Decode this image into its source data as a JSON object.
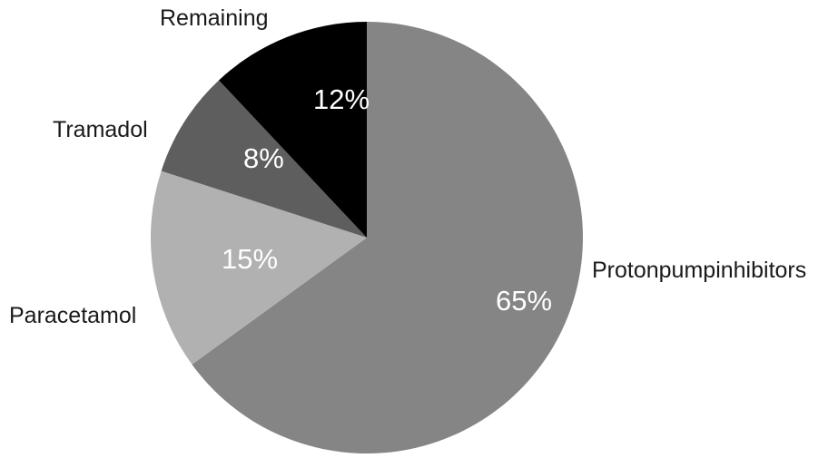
{
  "chart_data": {
    "type": "pie",
    "title": "",
    "start": "12 o'clock",
    "direction": "clockwise",
    "legend": "none",
    "slices": [
      {
        "label": "Protonpumpinhibitors",
        "value": 65,
        "value_label": "65%",
        "color": "#858585"
      },
      {
        "label": "Paracetamol",
        "value": 15,
        "value_label": "15%",
        "color": "#b1b1b1"
      },
      {
        "label": "Tramadol",
        "value": 8,
        "value_label": "8%",
        "color": "#5e5e5e"
      },
      {
        "label": "Remaining",
        "value": 12,
        "value_label": "12%",
        "color": "#000000"
      }
    ]
  }
}
